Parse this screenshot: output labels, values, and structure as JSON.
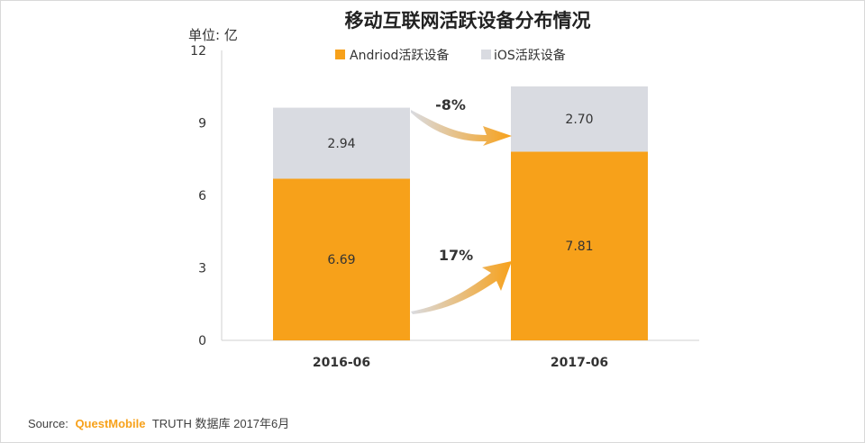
{
  "chart_data": {
    "type": "bar",
    "stacked": true,
    "title": "移动互联网活跃设备分布情况",
    "unit_label": "单位: 亿",
    "categories": [
      "2016-06",
      "2017-06"
    ],
    "series": [
      {
        "name": "Andriod活跃设备",
        "values": [
          6.69,
          7.81
        ],
        "color": "#f7a11a"
      },
      {
        "name": "iOS活跃设备",
        "values": [
          2.94,
          2.7
        ],
        "color": "#d9dbe1"
      }
    ],
    "data_labels": [
      [
        "6.69",
        "7.81"
      ],
      [
        "2.94",
        "2.70"
      ]
    ],
    "ylim": [
      0,
      12
    ],
    "yticks": [
      0,
      3,
      6,
      9,
      12
    ],
    "xlabel": "",
    "ylabel": "",
    "legend_position": "top",
    "annotations": [
      {
        "text": "17%",
        "series": "Andriod活跃设备"
      },
      {
        "text": "-8%",
        "series": "iOS活跃设备"
      }
    ]
  },
  "source": {
    "label": "Source:",
    "brand": "QuestMobile",
    "text": "TRUTH 数据库 2017年6月"
  }
}
